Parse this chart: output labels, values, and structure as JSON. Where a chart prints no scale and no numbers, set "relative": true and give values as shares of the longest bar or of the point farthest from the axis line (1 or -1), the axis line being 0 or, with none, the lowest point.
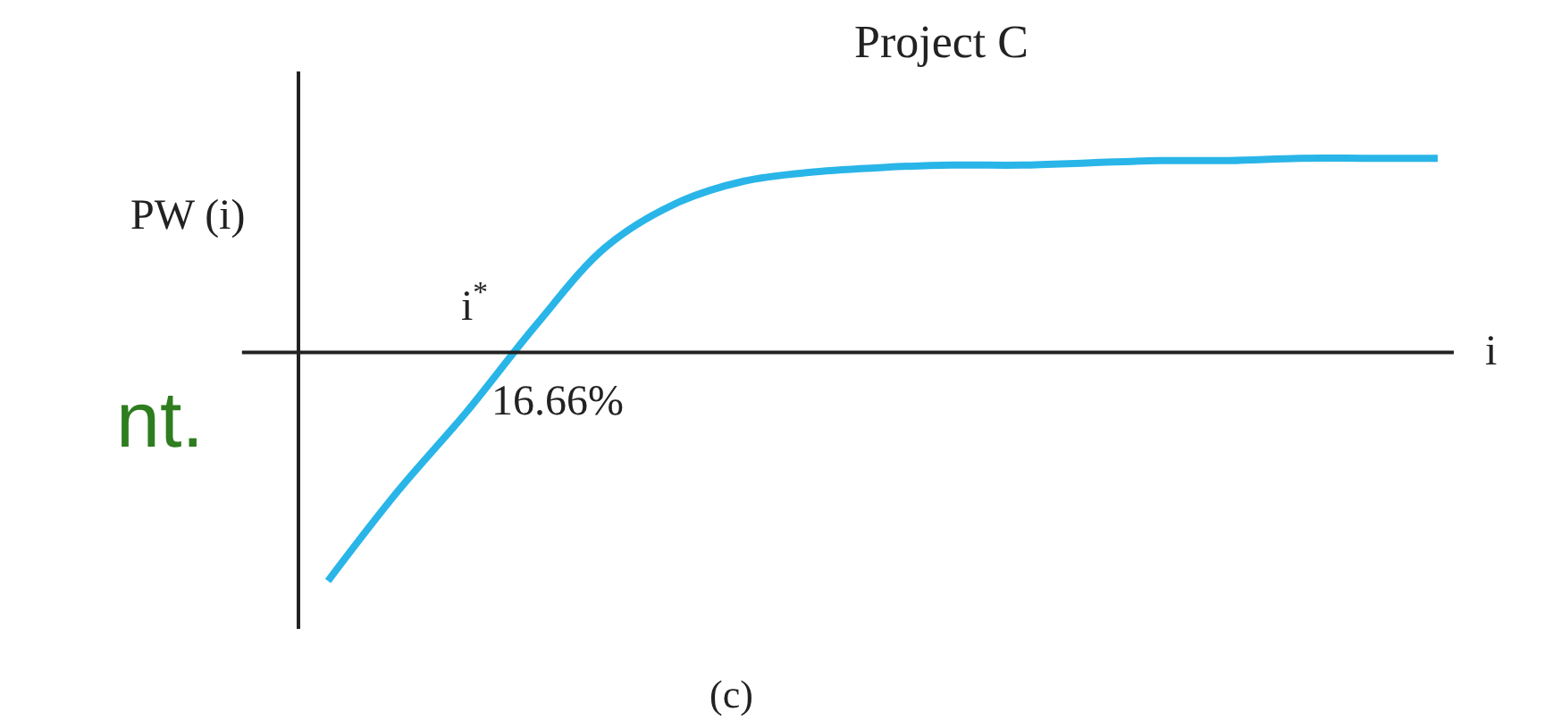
{
  "chart_data": {
    "type": "line",
    "relative": true,
    "title": "Project C",
    "ylabel": "PW (i)",
    "xlabel": "i",
    "categories": [
      null,
      null,
      null,
      null,
      null,
      null,
      null,
      null,
      null,
      null,
      null,
      null,
      null,
      null,
      null,
      null,
      null
    ],
    "series": [
      {
        "color": "#29b5e8",
        "values": [
          -1,
          -0.61,
          -0.26,
          0.12,
          0.46,
          0.65,
          0.75,
          0.79,
          0.81,
          0.82,
          0.82,
          0.83,
          0.84,
          0.84,
          0.85,
          0.85,
          0.85
        ]
      }
    ],
    "annotations": [
      "i$^{*}$",
      "16.66%",
      "(c)",
      "nt."
    ],
    "legend": false,
    "marker": "none",
    "line_style": "solid"
  }
}
